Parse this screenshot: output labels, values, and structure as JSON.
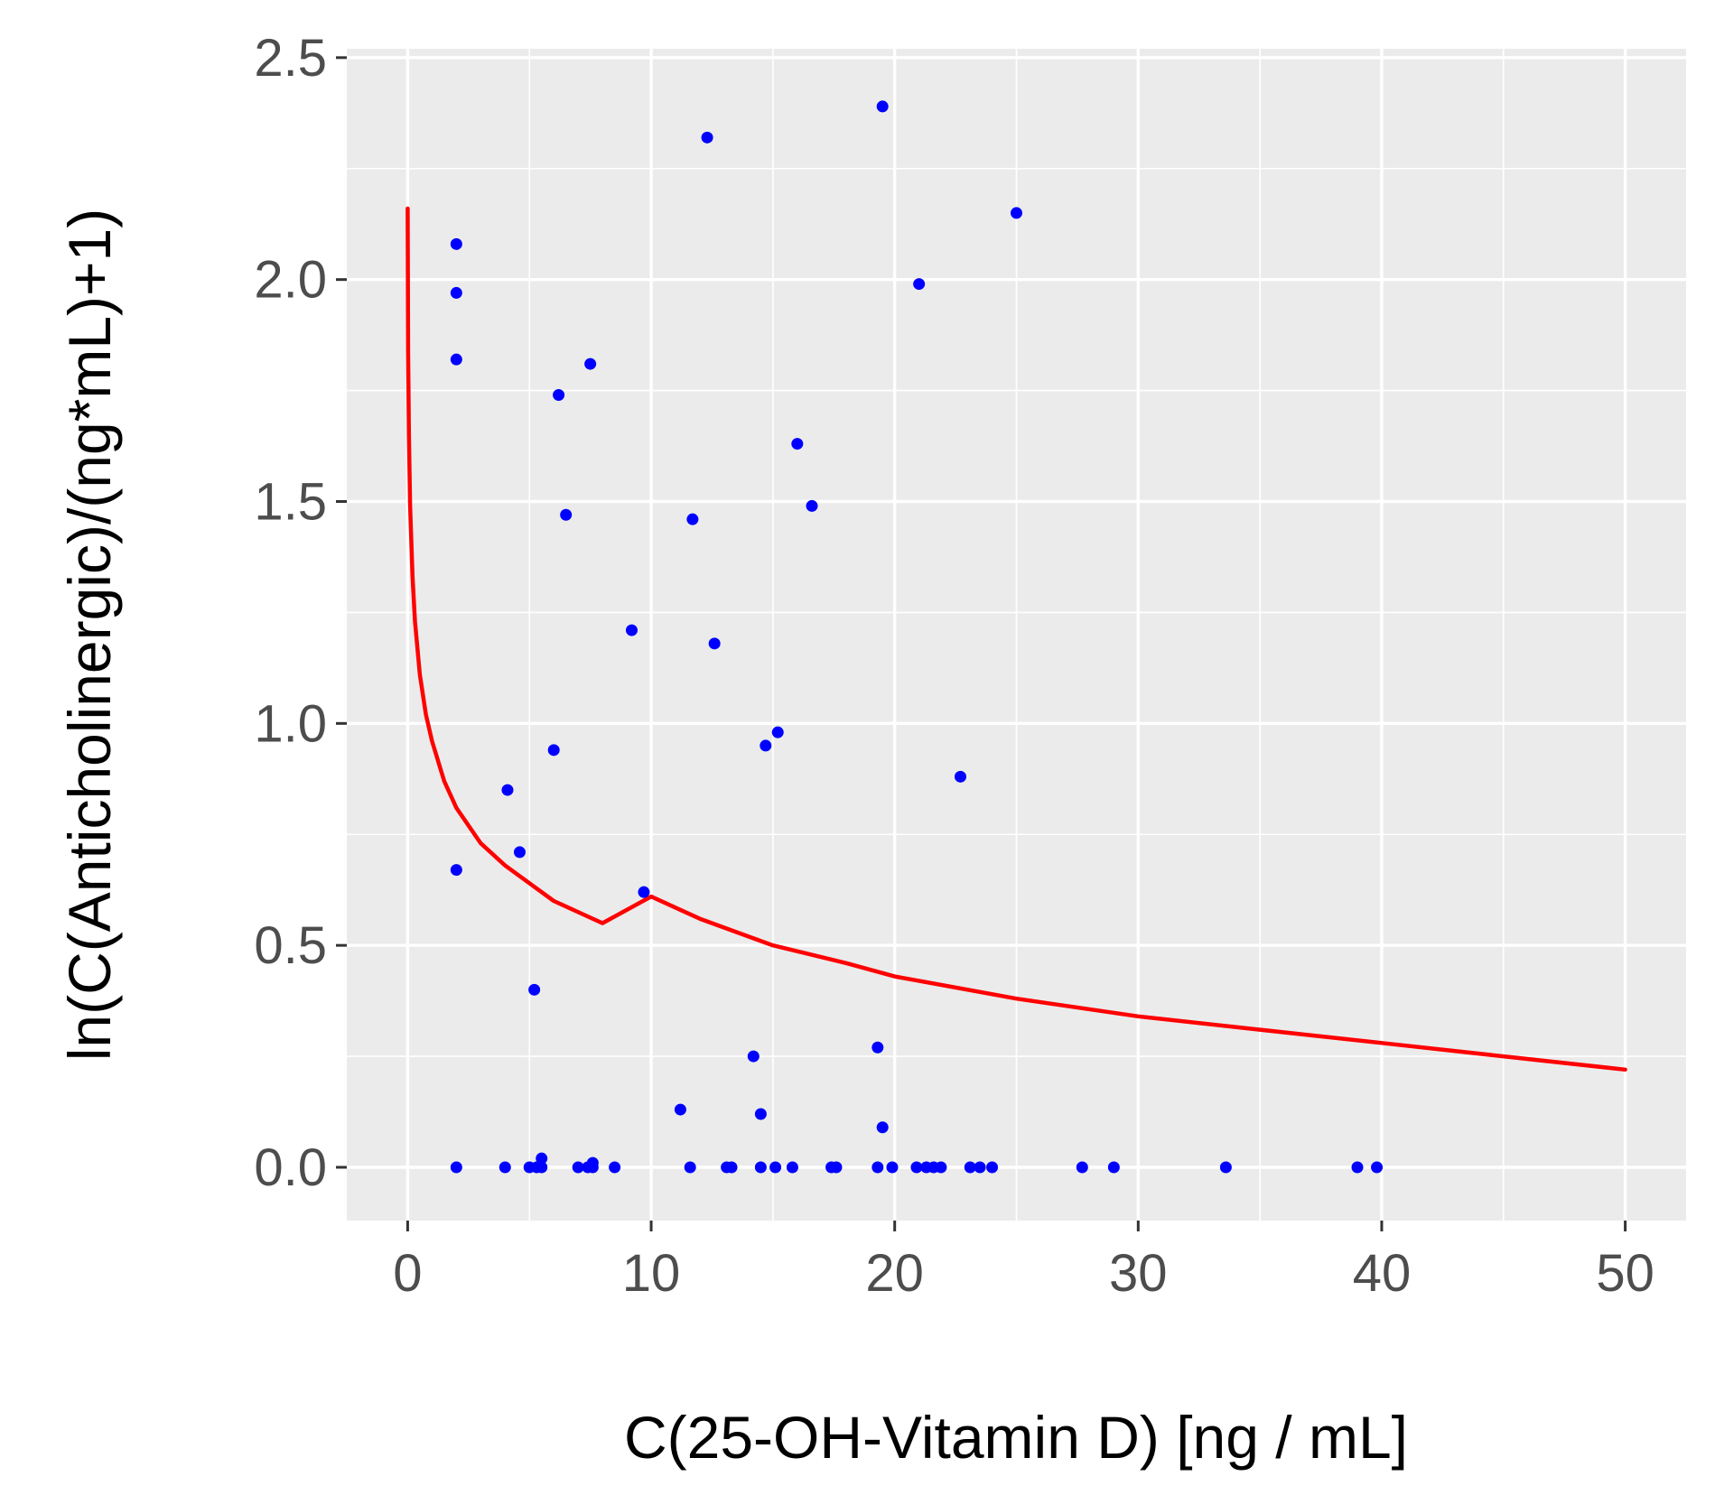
{
  "chart_data": {
    "type": "scatter",
    "title": "",
    "xlabel": "C(25-OH-Vitamin D) [ng / mL]",
    "ylabel": "ln(C(Anticholinergic)/(ng*mL)+1)",
    "xlim": [
      -2.5,
      52.5
    ],
    "ylim": [
      -0.12,
      2.52
    ],
    "x_ticks": [
      0,
      10,
      20,
      30,
      40,
      50
    ],
    "x_tick_labels": [
      "0",
      "10",
      "20",
      "30",
      "40",
      "50"
    ],
    "y_ticks": [
      0.0,
      0.5,
      1.0,
      1.5,
      2.0,
      2.5
    ],
    "y_tick_labels": [
      "0.0",
      "0.5",
      "1.0",
      "1.5",
      "2.0",
      "2.5"
    ],
    "x_minor": [
      5,
      15,
      25,
      35,
      45
    ],
    "y_minor": [
      0.25,
      0.75,
      1.25,
      1.75,
      2.25
    ],
    "grid": true,
    "colors": {
      "panel": "#ebebeb",
      "grid": "#ffffff",
      "points": "#0000ff",
      "fit": "#ff0000",
      "tick_text": "#4d4d4d",
      "axis_title": "#000000",
      "tick_mark": "#333333"
    },
    "series": [
      {
        "name": "observations",
        "type": "scatter",
        "x": [
          19.5,
          12.3,
          25.0,
          2.0,
          2.0,
          21.0,
          2.0,
          7.5,
          6.2,
          16.0,
          16.6,
          6.5,
          11.7,
          9.2,
          12.6,
          15.2,
          14.7,
          6.0,
          22.7,
          4.1,
          2.0,
          4.6,
          9.7,
          5.2,
          14.2,
          19.3,
          11.2,
          14.5,
          19.5,
          2.0,
          4.0,
          5.0,
          5.3,
          5.5,
          7.0,
          7.4,
          7.6,
          8.5,
          11.6,
          13.1,
          13.3,
          14.5,
          15.1,
          15.8,
          17.4,
          17.6,
          19.3,
          19.9,
          20.9,
          21.3,
          21.6,
          21.9,
          23.1,
          23.5,
          24.0,
          27.7,
          29.0,
          33.6,
          39.0,
          39.8,
          5.5,
          7.6
        ],
        "y": [
          2.39,
          2.32,
          2.15,
          2.08,
          1.97,
          1.99,
          1.82,
          1.81,
          1.74,
          1.63,
          1.49,
          1.47,
          1.46,
          1.21,
          1.18,
          0.98,
          0.95,
          0.94,
          0.88,
          0.85,
          0.67,
          0.71,
          0.62,
          0.4,
          0.25,
          0.27,
          0.13,
          0.12,
          0.09,
          0.0,
          0.0,
          0.0,
          0.0,
          0.0,
          0.0,
          0.0,
          0.0,
          0.0,
          0.0,
          0.0,
          0.0,
          0.0,
          0.0,
          0.0,
          0.0,
          0.0,
          0.0,
          0.0,
          0.0,
          0.0,
          0.0,
          0.0,
          0.0,
          0.0,
          0.0,
          0.0,
          0.0,
          0.0,
          0.0,
          0.0,
          0.02,
          0.01
        ]
      },
      {
        "name": "fit",
        "type": "line",
        "x": [
          0.0,
          0.02,
          0.05,
          0.1,
          0.2,
          0.3,
          0.5,
          0.75,
          1.0,
          1.5,
          2.0,
          3.0,
          4.0,
          5.0,
          6.0,
          8.0,
          10.0,
          12.0,
          15.0,
          18.0,
          20.0,
          25.0,
          30.0,
          35.0,
          40.0,
          45.0,
          50.0
        ],
        "y": [
          2.16,
          1.84,
          1.65,
          1.49,
          1.33,
          1.23,
          1.11,
          1.02,
          0.96,
          0.87,
          0.81,
          0.73,
          0.68,
          0.64,
          0.6,
          0.55,
          0.61,
          0.56,
          0.5,
          0.46,
          0.43,
          0.38,
          0.34,
          0.31,
          0.28,
          0.25,
          0.22
        ]
      }
    ]
  }
}
